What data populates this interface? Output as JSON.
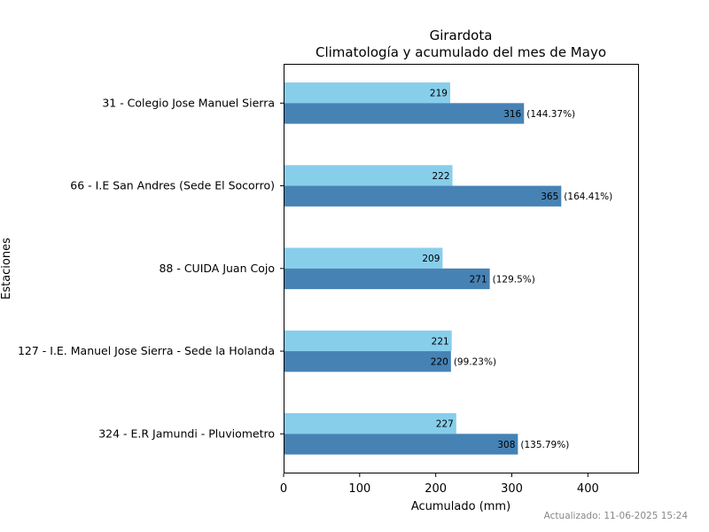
{
  "chart_data": {
    "type": "bar",
    "orientation": "horizontal",
    "title": "Girardota",
    "subtitle": "Climatología y acumulado del mes de Mayo",
    "xlabel": "Acumulado (mm)",
    "ylabel": "Estaciones",
    "xlim": [
      0,
      466
    ],
    "xticks": [
      0,
      100,
      200,
      300,
      400
    ],
    "grid": false,
    "categories": [
      "31 - Colegio Jose Manuel Sierra",
      "66 - I.E San Andres (Sede El Socorro)",
      "88 - CUIDA Juan Cojo",
      "127 - I.E. Manuel Jose Sierra - Sede la Holanda",
      "324 - E.R Jamundi - Pluviometro"
    ],
    "series": [
      {
        "values": [
          219,
          222,
          209,
          221,
          227
        ],
        "color": "#87ceeb"
      },
      {
        "values": [
          316,
          365,
          271,
          220,
          308
        ],
        "color": "#4682b4",
        "percent_labels": [
          "(144.37%)",
          "(164.41%)",
          "(129.5%)",
          "(99.23%)",
          "(135.79%)"
        ]
      }
    ]
  },
  "footer": "Actualizado: 11-06-2025 15:24"
}
